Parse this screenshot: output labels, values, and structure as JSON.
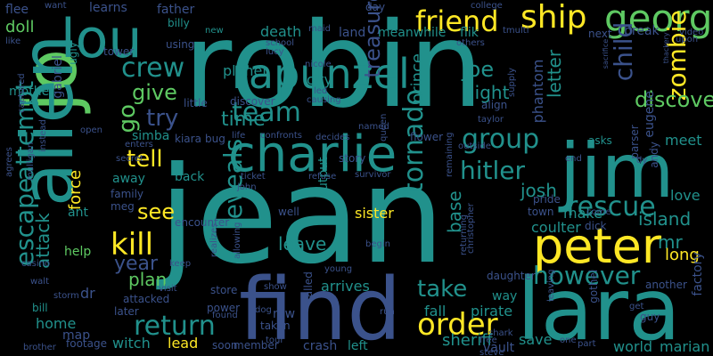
{
  "cloud": {
    "background": "#000000",
    "palette": {
      "purple": "#440154",
      "indigo": "#3b528b",
      "teal": "#21918c",
      "green": "#5ec962",
      "yellow": "#fde725"
    },
    "words": [
      {
        "text": "jean"
      },
      {
        "text": "robin"
      },
      {
        "text": "find"
      },
      {
        "text": "lara"
      },
      {
        "text": "jim"
      },
      {
        "text": "jo"
      },
      {
        "text": "alien"
      },
      {
        "text": "lou"
      },
      {
        "text": "peter"
      },
      {
        "text": "charlie"
      },
      {
        "text": "rapunzel"
      },
      {
        "text": "george"
      },
      {
        "text": "friend"
      },
      {
        "text": "ship"
      },
      {
        "text": "crew"
      },
      {
        "text": "team"
      },
      {
        "text": "group"
      },
      {
        "text": "kill"
      },
      {
        "text": "order"
      },
      {
        "text": "return"
      },
      {
        "text": "zombie"
      },
      {
        "text": "rescue"
      },
      {
        "text": "tornado"
      },
      {
        "text": "treasure"
      },
      {
        "text": "escape"
      },
      {
        "text": "attempt"
      },
      {
        "text": "hitler"
      },
      {
        "text": "child"
      },
      {
        "text": "however"
      },
      {
        "text": "reveals"
      },
      {
        "text": "discovers"
      },
      {
        "text": "tell"
      },
      {
        "text": "take"
      },
      {
        "text": "see"
      },
      {
        "text": "give"
      },
      {
        "text": "go"
      },
      {
        "text": "try"
      },
      {
        "text": "time"
      },
      {
        "text": "joe"
      },
      {
        "text": "night"
      },
      {
        "text": "letter"
      },
      {
        "text": "prince"
      },
      {
        "text": "phantom"
      },
      {
        "text": "island"
      },
      {
        "text": "base"
      },
      {
        "text": "josh"
      },
      {
        "text": "mr"
      },
      {
        "text": "long"
      },
      {
        "text": "plan"
      },
      {
        "text": "year"
      },
      {
        "text": "attack"
      },
      {
        "text": "force"
      },
      {
        "text": "doll"
      },
      {
        "text": "leave"
      },
      {
        "text": "make"
      },
      {
        "text": "meet"
      },
      {
        "text": "city"
      },
      {
        "text": "planet"
      },
      {
        "text": "death"
      },
      {
        "text": "sister"
      },
      {
        "text": "arrives"
      },
      {
        "text": "fall"
      },
      {
        "text": "pirate"
      },
      {
        "text": "sheriff"
      },
      {
        "text": "save"
      },
      {
        "text": "coulter"
      },
      {
        "text": "love"
      },
      {
        "text": "world"
      },
      {
        "text": "marian"
      },
      {
        "text": "lead"
      },
      {
        "text": "witch"
      },
      {
        "text": "crash"
      },
      {
        "text": "left"
      },
      {
        "text": "home"
      },
      {
        "text": "map"
      },
      {
        "text": "help"
      },
      {
        "text": "ant"
      },
      {
        "text": "back"
      },
      {
        "text": "away"
      },
      {
        "text": "family"
      },
      {
        "text": "simba"
      },
      {
        "text": "kiara"
      },
      {
        "text": "father"
      },
      {
        "text": "billy"
      },
      {
        "text": "mother"
      },
      {
        "text": "gabriel"
      },
      {
        "text": "ugly"
      },
      {
        "text": "flee"
      },
      {
        "text": "want"
      },
      {
        "text": "learns"
      },
      {
        "text": "using"
      },
      {
        "text": "tower"
      },
      {
        "text": "new"
      },
      {
        "text": "school"
      },
      {
        "text": "lucy"
      },
      {
        "text": "maid"
      },
      {
        "text": "land"
      },
      {
        "text": "meanwhile"
      },
      {
        "text": "flik"
      },
      {
        "text": "day"
      },
      {
        "text": "college"
      },
      {
        "text": "tmulti"
      },
      {
        "text": "next"
      },
      {
        "text": "break"
      },
      {
        "text": "video"
      },
      {
        "text": "others"
      },
      {
        "text": "output"
      },
      {
        "text": "align"
      },
      {
        "text": "taylor"
      },
      {
        "text": "eugene"
      },
      {
        "text": "parser"
      },
      {
        "text": "andy"
      },
      {
        "text": "factory"
      },
      {
        "text": "gothel"
      },
      {
        "text": "guy"
      },
      {
        "text": "another"
      },
      {
        "text": "get"
      },
      {
        "text": "leaving"
      },
      {
        "text": "vault"
      },
      {
        "text": "shark"
      },
      {
        "text": "free"
      },
      {
        "text": "steve"
      },
      {
        "text": "one"
      },
      {
        "text": "part"
      },
      {
        "text": "member"
      },
      {
        "text": "soon"
      },
      {
        "text": "later"
      },
      {
        "text": "bill"
      },
      {
        "text": "footage"
      },
      {
        "text": "casino"
      },
      {
        "text": "keep"
      },
      {
        "text": "visit"
      },
      {
        "text": "store"
      },
      {
        "text": "show"
      },
      {
        "text": "dog"
      },
      {
        "text": "taken"
      },
      {
        "text": "tour"
      },
      {
        "text": "mw"
      },
      {
        "text": "young"
      },
      {
        "text": "power"
      },
      {
        "text": "found"
      },
      {
        "text": "attacked"
      },
      {
        "text": "dr"
      },
      {
        "text": "storm"
      },
      {
        "text": "walt"
      },
      {
        "text": "brother"
      },
      {
        "text": "called"
      },
      {
        "text": "begin"
      },
      {
        "text": "returning"
      },
      {
        "text": "christopher"
      },
      {
        "text": "daughter"
      },
      {
        "text": "way"
      },
      {
        "text": "run"
      },
      {
        "text": "dick"
      },
      {
        "text": "town"
      },
      {
        "text": "pride"
      },
      {
        "text": "come"
      },
      {
        "text": "end"
      },
      {
        "text": "dy"
      },
      {
        "text": "asks"
      },
      {
        "text": "flower"
      },
      {
        "text": "queen"
      },
      {
        "text": "story"
      },
      {
        "text": "decides"
      },
      {
        "text": "confronts"
      },
      {
        "text": "life"
      },
      {
        "text": "bug"
      },
      {
        "text": "enters"
      },
      {
        "text": "secret"
      },
      {
        "text": "instead"
      },
      {
        "text": "agrees"
      },
      {
        "text": "mulligan"
      },
      {
        "text": "captured"
      },
      {
        "text": "like"
      },
      {
        "text": "open"
      },
      {
        "text": "little"
      },
      {
        "text": "discover"
      },
      {
        "text": "led"
      },
      {
        "text": "causing"
      },
      {
        "text": "nicole"
      },
      {
        "text": "named"
      },
      {
        "text": "outside"
      },
      {
        "text": "supply"
      },
      {
        "text": "sacrifice"
      },
      {
        "text": "thackery"
      },
      {
        "text": "upon"
      },
      {
        "text": "survivor"
      },
      {
        "text": "refuse"
      },
      {
        "text": "ticket"
      },
      {
        "text": "john"
      },
      {
        "text": "encounter"
      },
      {
        "text": "meg"
      },
      {
        "text": "realizes"
      },
      {
        "text": "allowing"
      },
      {
        "text": "well"
      },
      {
        "text": "remaining"
      }
    ]
  }
}
